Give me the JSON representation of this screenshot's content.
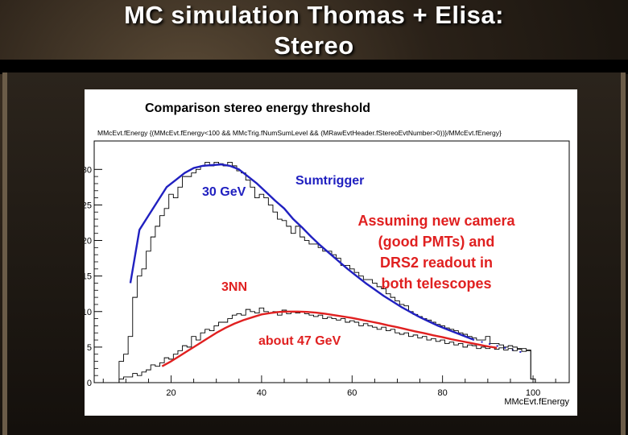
{
  "slide": {
    "title_line1": "MC simulation Thomas + Elisa:",
    "title_line2": "Stereo"
  },
  "plot": {
    "title": "Comparison stereo energy threshold",
    "expression": "MMcEvt.fEnergy {(MMcEvt.fEnergy<100 && MMcTrig.fNumSumLevel && (MRawEvtHeader.fStereoEvtNumber>0))}/MMcEvt.fEnergy}"
  },
  "annotations": {
    "sum_energy": "30 GeV",
    "sum_name": "Sumtrigger",
    "nn_name": "3NN",
    "nn_energy": "about 47 GeV",
    "note_lines": [
      "Assuming new camera",
      "(good PMTs) and",
      "DRS2 readout in",
      "both telescopes"
    ]
  },
  "chart_data": {
    "type": "line",
    "title": "Comparison stereo energy threshold",
    "xlabel": "MMcEvt.fEnergy",
    "ylabel": "",
    "xlim": [
      3,
      108
    ],
    "ylim": [
      0,
      34
    ],
    "x_ticks": [
      20,
      40,
      60,
      80,
      100
    ],
    "y_ticks": [
      0,
      5,
      10,
      15,
      20,
      25,
      30
    ],
    "grid": false,
    "colors": {
      "sumtrigger": "#2020c0",
      "nn": "#e02020",
      "hist": "#000000"
    },
    "series": [
      {
        "name": "Sumtrigger",
        "kind": "histogram",
        "bin_width": 1,
        "x": [
          9,
          10,
          11,
          12,
          13,
          14,
          15,
          16,
          17,
          18,
          19,
          20,
          21,
          22,
          23,
          24,
          25,
          26,
          27,
          28,
          29,
          30,
          31,
          32,
          33,
          34,
          35,
          36,
          37,
          38,
          39,
          40,
          41,
          42,
          43,
          44,
          45,
          46,
          47,
          48,
          49,
          50,
          51,
          52,
          53,
          54,
          55,
          56,
          57,
          58,
          59,
          60,
          61,
          62,
          63,
          64,
          65,
          66,
          67,
          68,
          69,
          70,
          71,
          72,
          73,
          74,
          75,
          76,
          77,
          78,
          79,
          80,
          81,
          82,
          83,
          84,
          85,
          86,
          87,
          88,
          89,
          90,
          91,
          92,
          93,
          94,
          95,
          96,
          97,
          98,
          99,
          100
        ],
        "values": [
          3.0,
          4.0,
          6.5,
          12.0,
          15.0,
          16.0,
          18.5,
          20.5,
          22.0,
          23.5,
          24.5,
          26.5,
          26.0,
          27.5,
          29.0,
          29.0,
          29.5,
          30.0,
          30.5,
          31.0,
          30.5,
          31.0,
          30.8,
          30.5,
          31.0,
          30.5,
          29.8,
          29.5,
          28.5,
          27.5,
          26.0,
          26.5,
          26.0,
          25.0,
          24.0,
          23.0,
          22.8,
          22.0,
          21.0,
          22.0,
          20.5,
          20.0,
          19.5,
          19.5,
          19.0,
          18.5,
          18.5,
          18.0,
          17.5,
          16.5,
          16.5,
          16.0,
          15.5,
          15.0,
          14.5,
          14.5,
          14.0,
          13.5,
          13.2,
          12.5,
          12.0,
          11.5,
          11.0,
          10.8,
          10.0,
          9.6,
          9.3,
          9.0,
          8.8,
          8.5,
          8.2,
          8.0,
          7.7,
          7.5,
          7.3,
          7.0,
          6.8,
          6.5,
          6.3,
          6.0,
          6.0,
          6.5,
          5.5,
          5.5,
          5.3,
          5.0,
          5.2,
          5.0,
          4.8,
          4.8,
          4.6,
          0.5
        ]
      },
      {
        "name": "Sumtrigger fit",
        "kind": "line",
        "x": [
          11,
          13,
          15,
          17,
          19,
          21,
          23,
          25,
          27,
          29,
          31,
          33,
          35,
          37,
          39,
          41,
          43,
          45,
          47,
          49,
          51,
          53,
          55,
          57,
          59,
          61,
          63,
          65,
          67,
          69,
          71,
          73,
          75,
          77,
          79,
          81,
          83,
          85,
          87
        ],
        "values": [
          14.0,
          21.5,
          23.5,
          25.5,
          27.5,
          28.5,
          29.5,
          30.2,
          30.5,
          30.6,
          30.7,
          30.5,
          30.0,
          29.0,
          28.0,
          26.8,
          25.6,
          24.5,
          23.0,
          21.8,
          20.5,
          19.3,
          18.2,
          17.1,
          16.0,
          15.0,
          14.0,
          13.1,
          12.2,
          11.4,
          10.6,
          9.9,
          9.2,
          8.6,
          8.0,
          7.5,
          7.0,
          6.5,
          6.0
        ]
      },
      {
        "name": "3NN",
        "kind": "histogram",
        "bin_width": 1,
        "x": [
          9,
          10,
          11,
          12,
          13,
          14,
          15,
          16,
          17,
          18,
          19,
          20,
          21,
          22,
          23,
          24,
          25,
          26,
          27,
          28,
          29,
          30,
          31,
          32,
          33,
          34,
          35,
          36,
          37,
          38,
          39,
          40,
          41,
          42,
          43,
          44,
          45,
          46,
          47,
          48,
          49,
          50,
          51,
          52,
          53,
          54,
          55,
          56,
          57,
          58,
          59,
          60,
          61,
          62,
          63,
          64,
          65,
          66,
          67,
          68,
          69,
          70,
          71,
          72,
          73,
          74,
          75,
          76,
          77,
          78,
          79,
          80,
          81,
          82,
          83,
          84,
          85,
          86,
          87,
          88,
          89,
          90,
          91,
          92,
          93,
          94,
          95,
          96,
          97,
          98,
          99,
          100
        ],
        "values": [
          0.5,
          0.8,
          0.8,
          1.3,
          1.0,
          1.5,
          1.8,
          2.5,
          2.3,
          2.8,
          3.5,
          3.3,
          4.0,
          4.5,
          5.2,
          5.0,
          6.5,
          6.0,
          7.0,
          7.5,
          7.3,
          8.0,
          8.5,
          8.5,
          9.0,
          9.5,
          9.7,
          9.5,
          10.3,
          10.0,
          9.8,
          10.5,
          10.0,
          9.8,
          10.0,
          9.5,
          10.2,
          9.7,
          9.9,
          9.8,
          10.0,
          9.7,
          9.5,
          9.3,
          9.5,
          9.0,
          9.2,
          9.0,
          8.8,
          9.0,
          8.5,
          8.7,
          8.5,
          8.0,
          8.3,
          8.0,
          7.8,
          7.5,
          7.8,
          7.3,
          7.5,
          7.0,
          6.8,
          7.0,
          6.5,
          6.7,
          6.3,
          6.5,
          6.0,
          6.2,
          5.8,
          6.0,
          5.5,
          5.7,
          5.3,
          5.5,
          5.0,
          5.3,
          5.2,
          4.8,
          5.0,
          4.8,
          5.0,
          4.7,
          4.9,
          4.6,
          4.8,
          4.5,
          4.7,
          4.4,
          4.5,
          0.5
        ]
      },
      {
        "name": "3NN fit",
        "kind": "line",
        "x": [
          18,
          20,
          22,
          24,
          26,
          28,
          30,
          32,
          34,
          36,
          38,
          40,
          42,
          44,
          46,
          48,
          50,
          52,
          54,
          56,
          58,
          60,
          62,
          64,
          66,
          68,
          70,
          72,
          74,
          76,
          78,
          80,
          82,
          84,
          86,
          88,
          90,
          92
        ],
        "values": [
          2.3,
          3.0,
          3.8,
          4.6,
          5.4,
          6.2,
          7.0,
          7.7,
          8.3,
          8.8,
          9.2,
          9.6,
          9.8,
          9.95,
          10.0,
          10.0,
          9.95,
          9.85,
          9.7,
          9.5,
          9.3,
          9.1,
          8.85,
          8.6,
          8.35,
          8.05,
          7.8,
          7.5,
          7.2,
          6.95,
          6.65,
          6.4,
          6.1,
          5.85,
          5.6,
          5.35,
          5.1,
          4.9
        ]
      }
    ]
  }
}
